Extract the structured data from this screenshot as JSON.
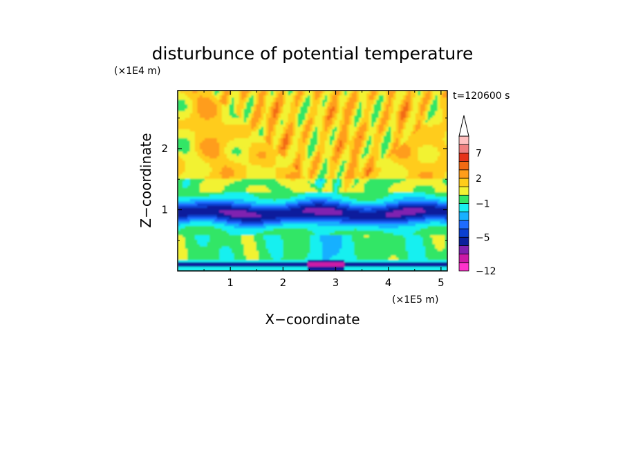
{
  "chart_data": {
    "type": "heatmap",
    "title": "disturbunce of potential temperature",
    "time_label": "t=120600 s",
    "xlabel": "X−coordinate",
    "ylabel": "Z−coordinate",
    "x_unit": "(×1E5 m)",
    "y_unit": "(×1E4 m)",
    "xlim": [
      0,
      5.12
    ],
    "ylim": [
      0,
      2.95
    ],
    "x_ticks": [
      {
        "value": 1,
        "label": "1"
      },
      {
        "value": 2,
        "label": "2"
      },
      {
        "value": 3,
        "label": "3"
      },
      {
        "value": 4,
        "label": "4"
      },
      {
        "value": 5,
        "label": "5"
      }
    ],
    "y_ticks": [
      {
        "value": 1,
        "label": "1"
      },
      {
        "value": 2,
        "label": "2"
      }
    ],
    "colorbar": {
      "levels_bottom_to_top": [
        -12,
        -10,
        -8,
        -6,
        -5,
        -4,
        -3,
        -2,
        -1,
        0,
        1,
        2,
        3,
        5,
        7,
        9,
        11
      ],
      "colors_bottom_to_top": [
        "#ff33cc",
        "#cc1aa6",
        "#8020b0",
        "#0a1f9c",
        "#0a3fd0",
        "#1f6cff",
        "#19b0ff",
        "#19f0f0",
        "#33e666",
        "#f2f233",
        "#ffcc1a",
        "#ff9d1a",
        "#f26a13",
        "#e63319",
        "#f08080",
        "#ffc0c0"
      ],
      "labels": [
        {
          "value": -12,
          "label": "−12"
        },
        {
          "value": -5,
          "label": "−5"
        },
        {
          "value": -1,
          "label": "−1"
        },
        {
          "value": 2,
          "label": "2"
        },
        {
          "value": 7,
          "label": "7"
        }
      ],
      "extend": "max"
    }
  }
}
